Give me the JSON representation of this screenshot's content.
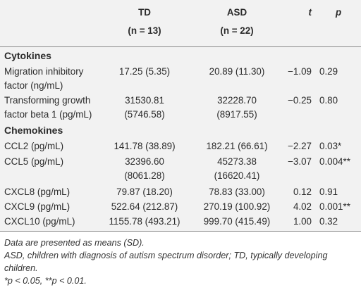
{
  "header": {
    "td_label": "TD",
    "td_n": "(n = 13)",
    "asd_label": "ASD",
    "asd_n": "(n = 22)",
    "t_label": "t",
    "p_label": "p"
  },
  "sections": {
    "cytokines": "Cytokines",
    "chemokines": "Chemokines"
  },
  "rows": {
    "mif": {
      "label_line1": "Migration inhibitory",
      "label_line2": "factor (ng/mL)",
      "td": "17.25 (5.35)",
      "asd": "20.89 (11.30)",
      "t": "−1.09",
      "p": "0.29"
    },
    "tgfb1": {
      "label_line1": "Transforming growth",
      "label_line2": "factor beta 1 (pg/mL)",
      "td_line1": "31530.81",
      "td_line2": "(5746.58)",
      "asd_line1": "32228.70",
      "asd_line2": "(8917.55)",
      "t": "−0.25",
      "p": "0.80"
    },
    "ccl2": {
      "label": "CCL2 (pg/mL)",
      "td": "141.78 (38.89)",
      "asd": "182.21 (66.61)",
      "t": "−2.27",
      "p": "0.03*"
    },
    "ccl5": {
      "label": "CCL5 (pg/mL)",
      "td_line1": "32396.60",
      "td_line2": "(8061.28)",
      "asd_line1": "45273.38",
      "asd_line2": "(16620.41)",
      "t": "−3.07",
      "p": "0.004**"
    },
    "cxcl8": {
      "label": "CXCL8 (pg/mL)",
      "td": "79.87 (18.20)",
      "asd": "78.83 (33.00)",
      "t": "0.12",
      "p": "0.91"
    },
    "cxcl9": {
      "label": "CXCL9 (pg/mL)",
      "td": "522.64 (212.87)",
      "asd": "270.19 (100.92)",
      "t": "4.02",
      "p": "0.001**"
    },
    "cxcl10": {
      "label": "CXCL10 (pg/mL)",
      "td": "1155.78 (493.21)",
      "asd": "999.70 (415.49)",
      "t": "1.00",
      "p": "0.32"
    }
  },
  "notes": {
    "line1": "Data are presented as means (SD).",
    "line2": "ASD, children with diagnosis of autism spectrum disorder; TD, typically developing children.",
    "line3": "*p < 0.05, **p < 0.01."
  }
}
